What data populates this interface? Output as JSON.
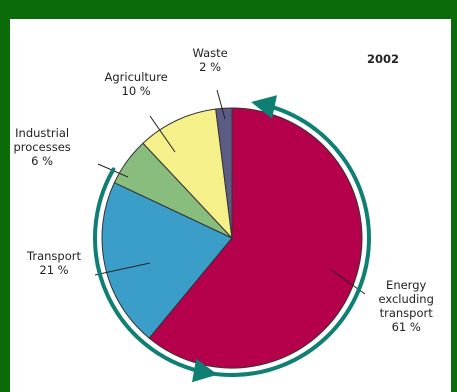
{
  "chart_data": {
    "type": "pie",
    "title": "2002",
    "slices": [
      {
        "name": "Energy excluding transport",
        "value": 61,
        "value_label": "61 %",
        "color": "#b5004c",
        "label_lines": [
          "Energy",
          "excluding",
          "transport"
        ]
      },
      {
        "name": "Transport",
        "value": 21,
        "value_label": "21 %",
        "color": "#3a9ec9",
        "label_lines": [
          "Transport"
        ]
      },
      {
        "name": "Industrial processes",
        "value": 6,
        "value_label": "6 %",
        "color": "#88bd7e",
        "label_lines": [
          "Industrial",
          "processes"
        ]
      },
      {
        "name": "Agriculture",
        "value": 10,
        "value_label": "10 %",
        "color": "#f6f08a",
        "label_lines": [
          "Agriculture"
        ]
      },
      {
        "name": "Waste",
        "value": 2,
        "value_label": "2 %",
        "color": "#5d5b86",
        "label_lines": [
          "Waste"
        ]
      }
    ],
    "start_angle_deg": 0,
    "direction": "clockwise",
    "annotation_arrow_color": "#0f7f74"
  }
}
